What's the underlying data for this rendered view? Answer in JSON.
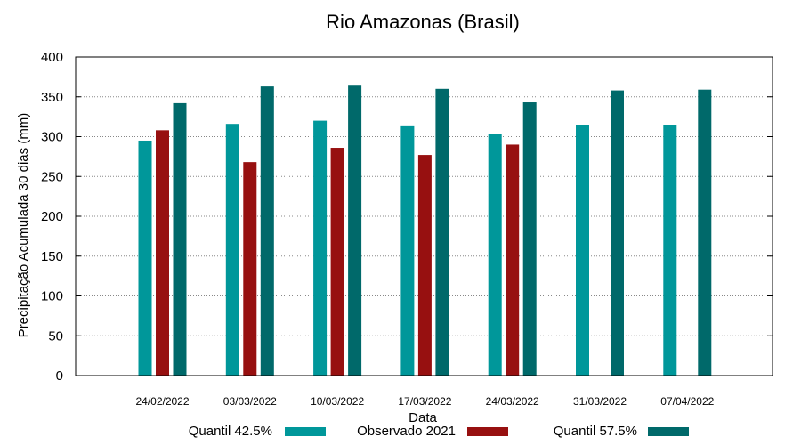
{
  "chart_data": {
    "type": "bar",
    "title": "Rio Amazonas (Brasil)",
    "xlabel": "Data",
    "ylabel": "Precipitação Acumulada 30 dias (mm)",
    "ylim": [
      0,
      400
    ],
    "yticks": [
      0,
      50,
      100,
      150,
      200,
      250,
      300,
      350,
      400
    ],
    "grid": true,
    "legend_position": "bottom",
    "categories": [
      "24/02/2022",
      "03/03/2022",
      "10/03/2022",
      "17/03/2022",
      "24/03/2022",
      "31/03/2022",
      "07/04/2022"
    ],
    "series": [
      {
        "name": "Quantil 42.5%",
        "color": "#00979a",
        "values": [
          295,
          316,
          320,
          313,
          303,
          315,
          315
        ]
      },
      {
        "name": "Observado 2021",
        "color": "#971010",
        "values": [
          308,
          268,
          286,
          277,
          290,
          null,
          null
        ]
      },
      {
        "name": "Quantil 57.5%",
        "color": "#00696a",
        "values": [
          342,
          363,
          364,
          360,
          343,
          358,
          359
        ]
      }
    ]
  }
}
